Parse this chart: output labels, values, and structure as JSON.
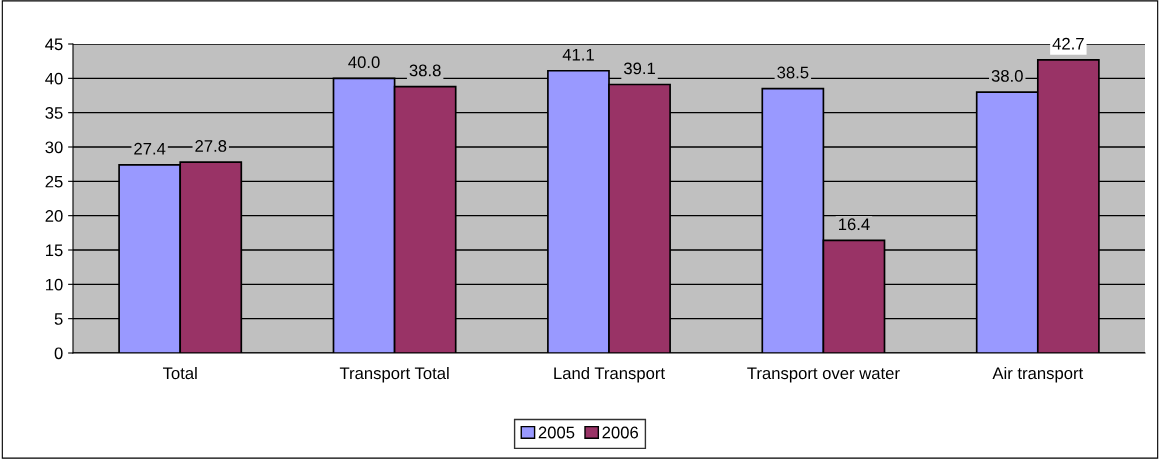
{
  "chart_data": {
    "type": "bar",
    "categories": [
      "Total",
      "Transport Total",
      "Land Transport",
      "Transport over water",
      "Air transport"
    ],
    "series": [
      {
        "name": "2005",
        "color": "#9999ff",
        "values": [
          27.4,
          40.0,
          41.1,
          38.5,
          38.0
        ],
        "value_labels": [
          "27.4",
          "40.0",
          "41.1",
          "38.5",
          "38.0"
        ]
      },
      {
        "name": "2006",
        "color": "#993366",
        "values": [
          27.8,
          38.8,
          39.1,
          16.4,
          42.7
        ],
        "value_labels": [
          "27.8",
          "38.8",
          "39.1",
          "16.4",
          "42.7"
        ]
      }
    ],
    "ylim": [
      0,
      45
    ],
    "yticks": [
      0,
      5,
      10,
      15,
      20,
      25,
      30,
      35,
      40,
      45
    ],
    "grid": "y",
    "legend": "bottom"
  }
}
